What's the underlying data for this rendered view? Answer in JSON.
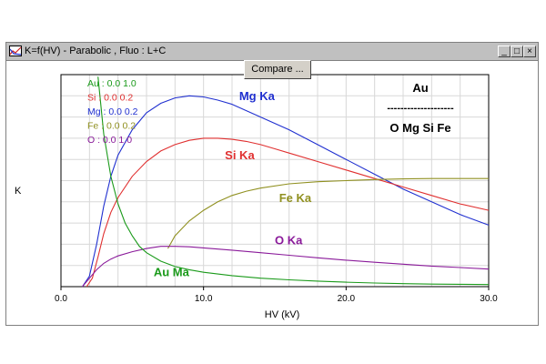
{
  "window": {
    "title": "K=f(HV) - Parabolic , Fluo : L+C",
    "minimize": "_",
    "maximize": "□",
    "close": "×",
    "compare_label": "Compare ..."
  },
  "colors": {
    "Au": "#1a9a1a",
    "Si": "#e03030",
    "Mg": "#2030d0",
    "Fe": "#909020",
    "O": "#8a1a9a"
  },
  "chart_data": {
    "type": "line",
    "xlabel": "HV (kV)",
    "ylabel": "K",
    "xlim": [
      0,
      30
    ],
    "ylim": [
      0,
      1
    ],
    "x_ticks": [
      "0.0",
      "10.0",
      "20.0",
      "30.0"
    ],
    "grid": true,
    "legend": [
      {
        "text": "Au : 0.0  1.0",
        "color": "#1a9a1a"
      },
      {
        "text": "Si : 0.0  0.2",
        "color": "#e03030"
      },
      {
        "text": "Mg : 0.0  0.2",
        "color": "#2030d0"
      },
      {
        "text": "Fe : 0.0  0.2",
        "color": "#909020"
      },
      {
        "text": "O  : 0.0  1.0",
        "color": "#8a1a9a"
      }
    ],
    "annotation": {
      "top": "Au",
      "divider": "--------------------",
      "bottom": "O Mg Si Fe"
    },
    "series": [
      {
        "name": "Mg Ka",
        "color": "#2030d0",
        "label_x": 12.5,
        "label_y": 0.88,
        "x": [
          1.5,
          2.0,
          2.5,
          3.0,
          3.5,
          4.0,
          5.0,
          6.0,
          7.0,
          8.0,
          9.0,
          10.0,
          11.0,
          12.0,
          14.0,
          16.0,
          18.0,
          20.0,
          22.0,
          24.0,
          26.0,
          28.0,
          30.0
        ],
        "y": [
          0.0,
          0.05,
          0.2,
          0.38,
          0.52,
          0.62,
          0.74,
          0.82,
          0.865,
          0.89,
          0.9,
          0.895,
          0.88,
          0.86,
          0.8,
          0.74,
          0.67,
          0.6,
          0.53,
          0.46,
          0.4,
          0.34,
          0.29
        ]
      },
      {
        "name": "Si Ka",
        "color": "#e03030",
        "label_x": 11.5,
        "label_y": 0.6,
        "x": [
          1.8,
          2.2,
          2.6,
          3.0,
          3.5,
          4.0,
          5.0,
          6.0,
          7.0,
          8.0,
          9.0,
          10.0,
          11.0,
          12.0,
          13.0,
          14.0,
          15.0,
          16.0,
          18.0,
          20.0,
          22.0,
          24.0,
          26.0,
          28.0,
          30.0
        ],
        "y": [
          0.0,
          0.04,
          0.14,
          0.25,
          0.35,
          0.42,
          0.52,
          0.59,
          0.64,
          0.67,
          0.69,
          0.7,
          0.7,
          0.695,
          0.685,
          0.67,
          0.65,
          0.63,
          0.59,
          0.55,
          0.51,
          0.47,
          0.43,
          0.39,
          0.36
        ]
      },
      {
        "name": "Fe Ka",
        "color": "#909020",
        "label_x": 15.3,
        "label_y": 0.4,
        "x": [
          7.5,
          8.0,
          9.0,
          10.0,
          11.0,
          12.0,
          13.0,
          14.0,
          16.0,
          18.0,
          20.0,
          22.0,
          24.0,
          26.0,
          28.0,
          30.0
        ],
        "y": [
          0.18,
          0.24,
          0.31,
          0.36,
          0.4,
          0.43,
          0.45,
          0.465,
          0.485,
          0.495,
          0.5,
          0.505,
          0.508,
          0.51,
          0.51,
          0.51
        ]
      },
      {
        "name": "O  Ka",
        "color": "#8a1a9a",
        "label_x": 15.0,
        "label_y": 0.2,
        "x": [
          1.5,
          2.0,
          2.5,
          3.0,
          3.5,
          4.0,
          5.0,
          6.0,
          7.0,
          8.0,
          9.0,
          10.0,
          12.0,
          14.0,
          16.0,
          18.0,
          20.0,
          22.0,
          24.0,
          26.0,
          28.0,
          30.0
        ],
        "y": [
          0.0,
          0.04,
          0.08,
          0.11,
          0.13,
          0.145,
          0.165,
          0.18,
          0.19,
          0.19,
          0.188,
          0.183,
          0.172,
          0.16,
          0.148,
          0.136,
          0.125,
          0.115,
          0.106,
          0.097,
          0.09,
          0.083
        ]
      },
      {
        "name": "Au Ma",
        "color": "#1a9a1a",
        "label_x": 6.5,
        "label_y": 0.05,
        "x": [
          2.6,
          3.0,
          3.5,
          4.0,
          4.5,
          5.0,
          5.5,
          6.0,
          7.0,
          8.0,
          9.0,
          10.0,
          12.0,
          14.0,
          16.0,
          18.0,
          20.0,
          22.0,
          24.0,
          26.0,
          28.0,
          30.0
        ],
        "y": [
          0.99,
          0.72,
          0.52,
          0.39,
          0.3,
          0.24,
          0.19,
          0.16,
          0.12,
          0.095,
          0.08,
          0.068,
          0.052,
          0.04,
          0.032,
          0.026,
          0.021,
          0.017,
          0.014,
          0.012,
          0.011,
          0.01
        ]
      }
    ]
  }
}
